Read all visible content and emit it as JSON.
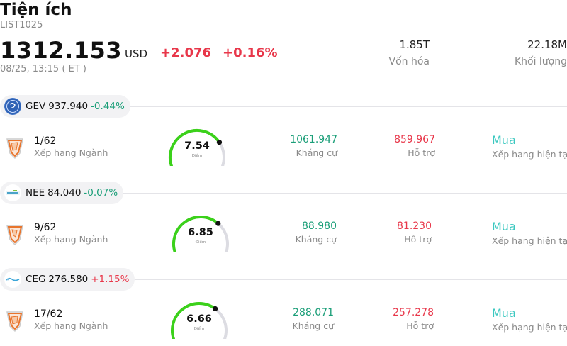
{
  "header": {
    "title": "Tiện ích",
    "code": "LIST1025",
    "price": "1312.153",
    "currency": "USD",
    "change": "+2.076",
    "change_pct": "+0.16%",
    "time": "08/25, 13:15  ( ET )"
  },
  "stats": [
    {
      "value": "1.85T",
      "label": "Vốn hóa"
    },
    {
      "value": "22.18M",
      "label": "Khối lượng"
    }
  ],
  "colors": {
    "up_red": "#e8374a",
    "down_green": "#1a9e78",
    "gauge_green": "#3bd11a",
    "recommend_teal": "#3cc8c0",
    "rank_orange": "#e8742c"
  },
  "stocks": [
    {
      "symbol": "GEV",
      "price": "937.940",
      "change": "-0.44%",
      "logo": "ge-logo-icon",
      "rank": "1/62",
      "rank_label": "Xếp hạng Ngành",
      "score": "7.54",
      "score_fraction": 0.754,
      "score_label": "Điểm",
      "resistance": "1061.947",
      "resistance_label": "Kháng cự",
      "support": "859.967",
      "support_label": "Hỗ trợ",
      "recommendation": "Mua",
      "recommendation_label": "Xếp hạng hiện tại"
    },
    {
      "symbol": "NEE",
      "price": "84.040",
      "change": "-0.07%",
      "logo": "nextera-logo-icon",
      "rank": "9/62",
      "rank_label": "Xếp hạng Ngành",
      "score": "6.85",
      "score_fraction": 0.685,
      "score_label": "Điểm",
      "resistance": "88.980",
      "resistance_label": "Kháng cự",
      "support": "81.230",
      "support_label": "Hỗ trợ",
      "recommendation": "Mua",
      "recommendation_label": "Xếp hạng hiện tại"
    },
    {
      "symbol": "CEG",
      "price": "276.580",
      "change": "+1.15%",
      "logo": "constellation-logo-icon",
      "rank": "17/62",
      "rank_label": "Xếp hạng Ngành",
      "score": "6.66",
      "score_fraction": 0.666,
      "score_label": "Điểm",
      "resistance": "288.071",
      "resistance_label": "Kháng cự",
      "support": "257.278",
      "support_label": "Hỗ trợ",
      "recommendation": "Mua",
      "recommendation_label": "Xếp hạng hiện tại"
    }
  ]
}
